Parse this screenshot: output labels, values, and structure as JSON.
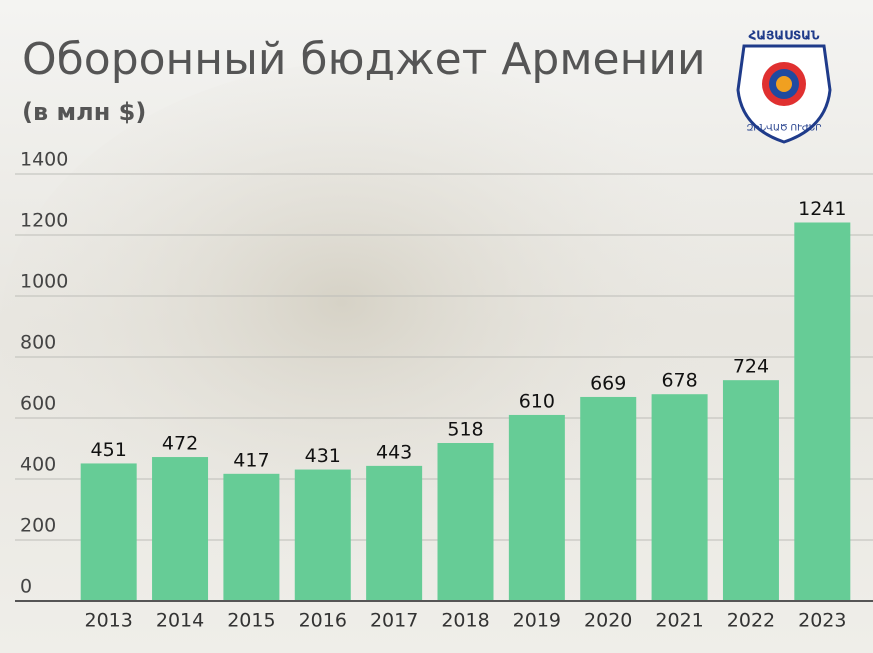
{
  "chart_data": {
    "type": "bar",
    "title": "Оборонный бюджет Армении",
    "subtitle": "(в млн $)",
    "categories": [
      "2013",
      "2014",
      "2015",
      "2016",
      "2017",
      "2018",
      "2019",
      "2020",
      "2021",
      "2022",
      "2023"
    ],
    "values": [
      451,
      472,
      417,
      431,
      443,
      518,
      610,
      669,
      678,
      724,
      1241
    ],
    "color": "#66cc96",
    "ylim": [
      0,
      1400
    ],
    "yticks": [
      0,
      200,
      400,
      600,
      800,
      1000,
      1200,
      1400
    ],
    "grid": true
  },
  "logo": {
    "top": "ՀԱՅԱՍՏԱՆ",
    "bottom": "ԶԻՆՎԱԾ ՈՒԺԵՐ"
  }
}
